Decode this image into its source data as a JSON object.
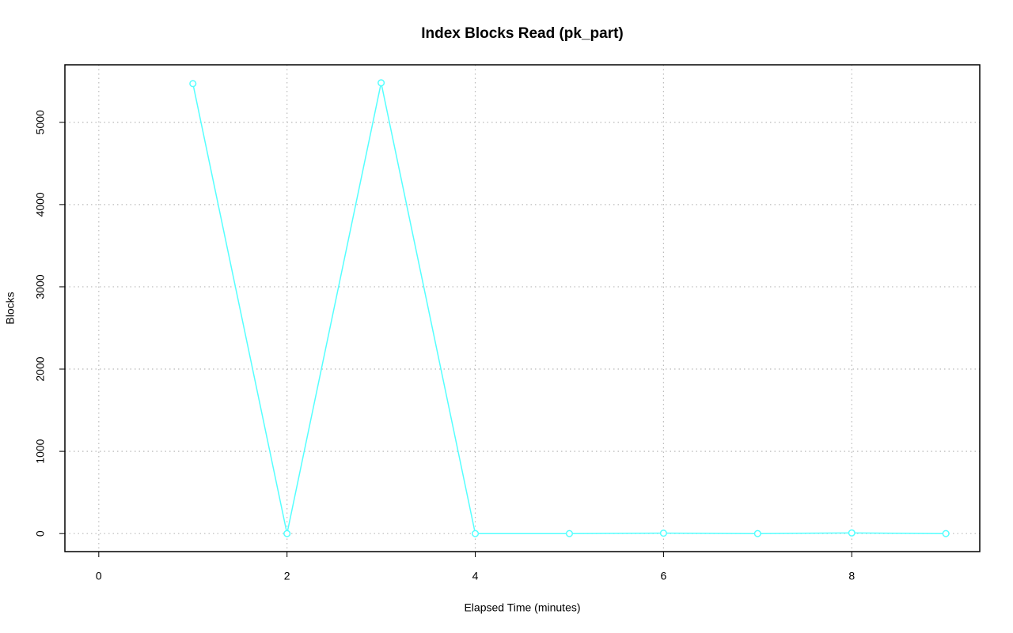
{
  "chart_data": {
    "type": "line",
    "title": "Index Blocks Read (pk_part)",
    "x_label": "Elapsed Time (minutes)",
    "y_label": "Blocks",
    "x": [
      1,
      2,
      3,
      4,
      5,
      6,
      7,
      8,
      9
    ],
    "series": [
      {
        "name": "pk_part",
        "color": "#55ffff",
        "values": [
          5470,
          0,
          5480,
          0,
          0,
          5,
          0,
          8,
          0
        ]
      }
    ],
    "xlim": [
      -0.36,
      9.36
    ],
    "xticks": [
      0,
      2,
      4,
      6,
      8
    ],
    "ylim": [
      -219,
      5699
    ],
    "yticks": [
      0,
      1000,
      2000,
      3000,
      4000,
      5000
    ],
    "grid": true
  }
}
